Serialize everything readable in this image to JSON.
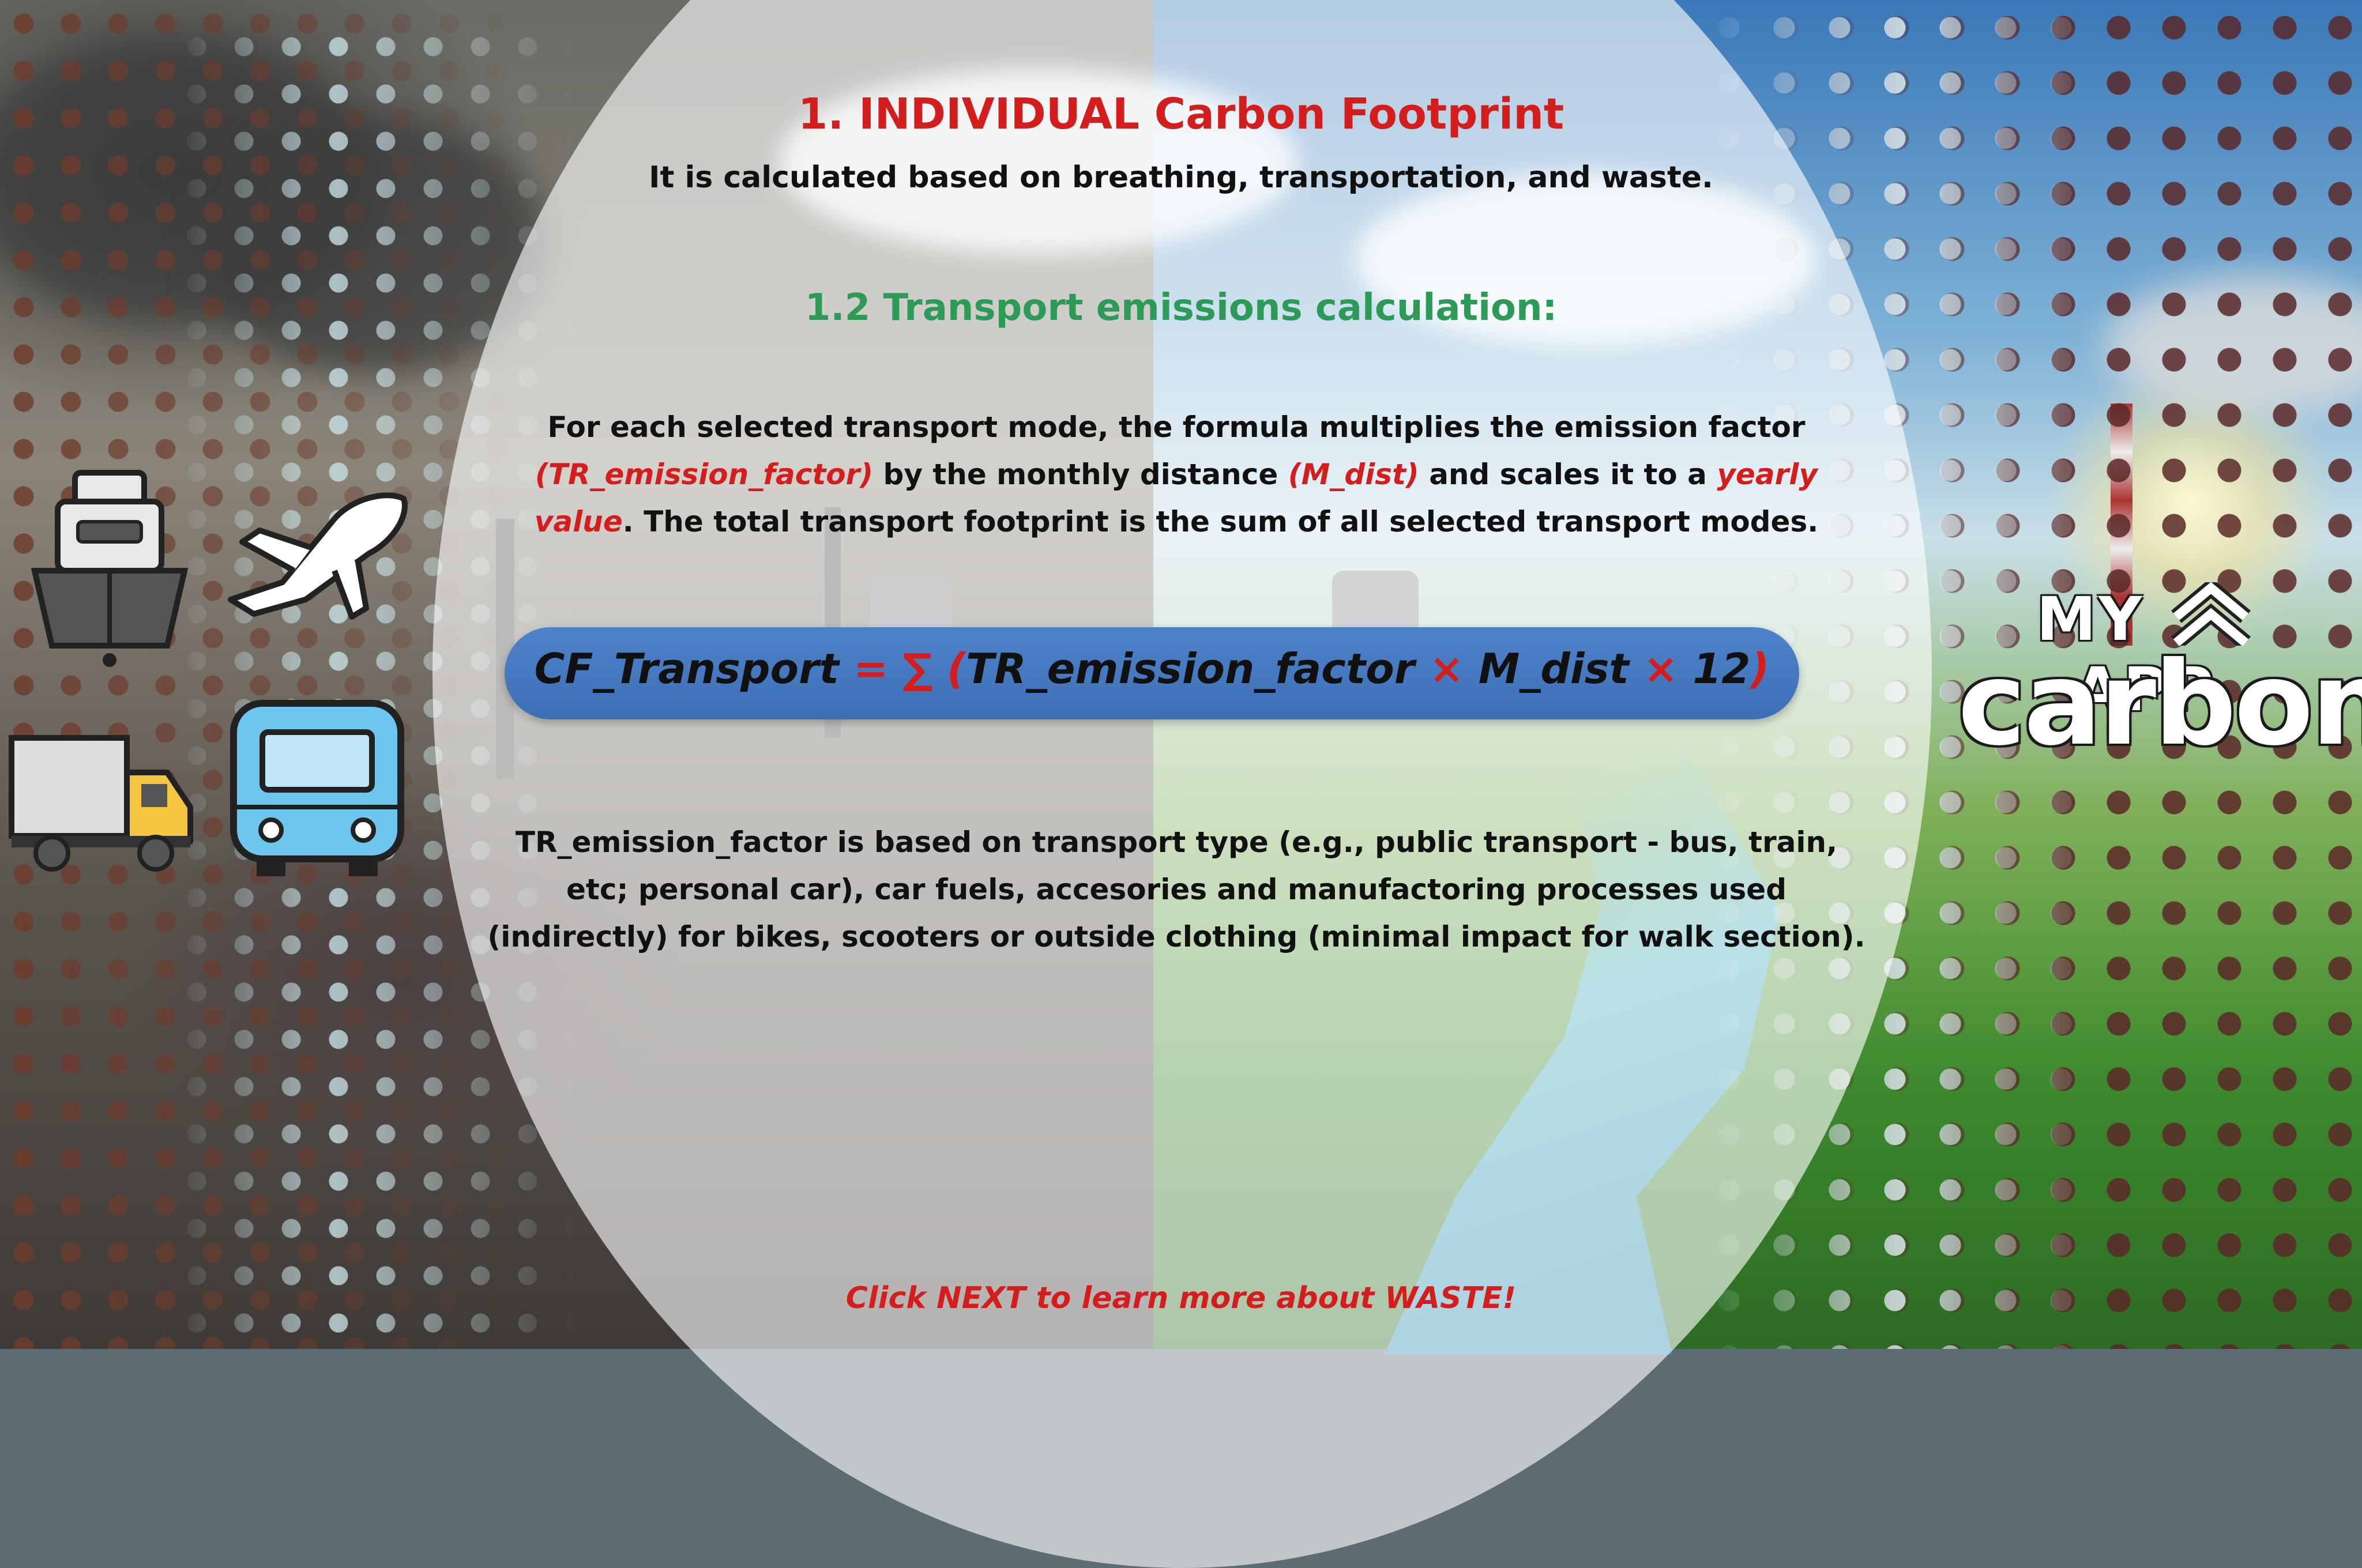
{
  "title": "1. INDIVIDUAL Carbon Footprint",
  "subtitle": "It is calculated based on breathing, transportation, and waste.",
  "section_title": "1.2 Transport emissions calculation:",
  "paragraph1": {
    "part1": "For each selected transport mode, the formula multiplies the emission factor ",
    "term1": "(TR_emission_factor)",
    "part2": " by the monthly distance ",
    "term2": "(M_dist)",
    "part3": " and scales it to a ",
    "term3": "yearly value",
    "part4": ". The total transport footprint is the sum of all selected transport modes."
  },
  "formula": {
    "lhs": "CF_Transport ",
    "eq": "= ∑ (",
    "factor": "TR_emission_factor ",
    "times1": "× ",
    "dist": "M_dist ",
    "times2": "× ",
    "months": "12",
    "close": ")"
  },
  "paragraph2": "TR_emission_factor is based on transport type (e.g., public transport - bus, train, etc; personal car), car fuels, accesories and manufactoring processes used (indirectly) for bikes, scooters or outside clothing (minimal impact for walk section).",
  "footer": "Click NEXT to learn more about WASTE!",
  "logo": {
    "top_left": "MY",
    "top_right": "APP",
    "bottom": "carbon"
  },
  "icons": [
    "ship-icon",
    "airplane-icon",
    "truck-icon",
    "bus-icon",
    "chevrons-up-icon"
  ],
  "colors": {
    "accent_red": "#d41e1e",
    "accent_green": "#2e9a57",
    "formula_bg": "#4a7ec4"
  }
}
